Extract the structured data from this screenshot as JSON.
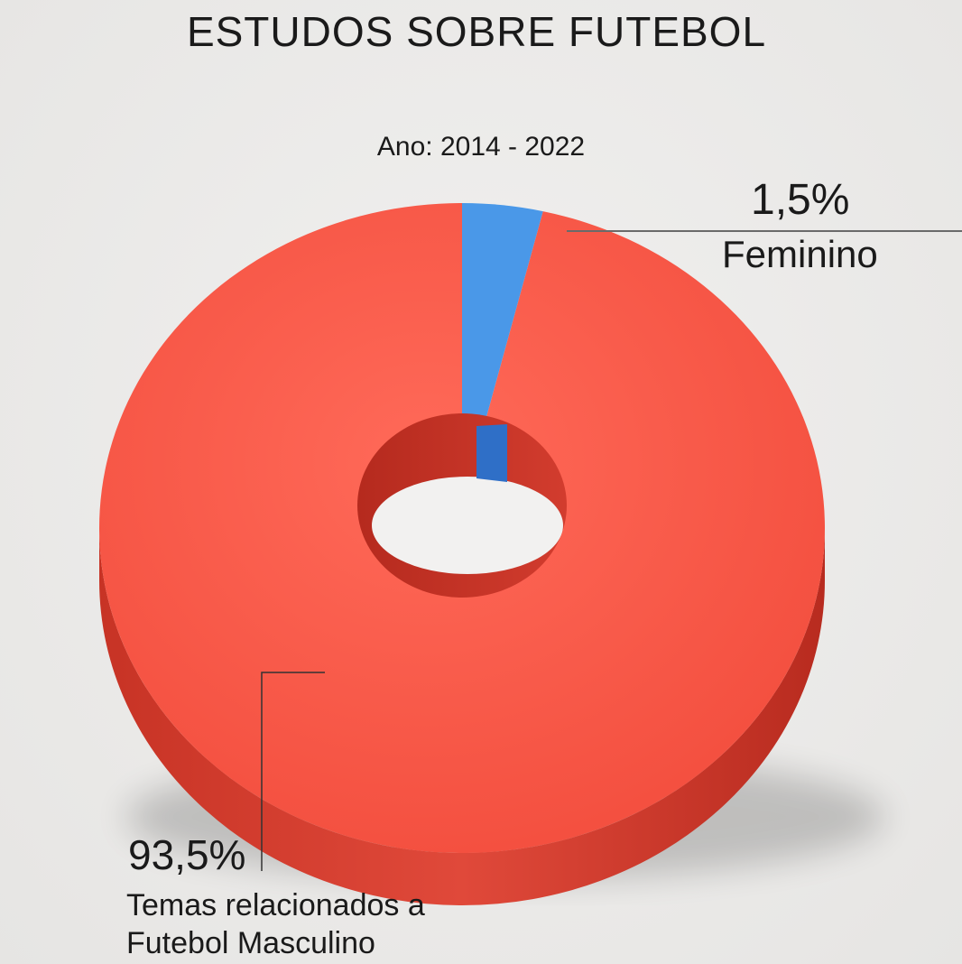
{
  "chart_data": {
    "type": "pie",
    "style": "3d-donut",
    "title": "ESTUDOS SOBRE FUTEBOL",
    "subtitle": "Ano: 2014 - 2022",
    "categories": [
      "Temas relacionados a Futebol Masculino",
      "Feminino"
    ],
    "values": [
      93.5,
      1.5
    ],
    "value_labels": [
      "93,5%",
      "1,5%"
    ],
    "colors": [
      "#f25a4a",
      "#4a98e8"
    ]
  }
}
